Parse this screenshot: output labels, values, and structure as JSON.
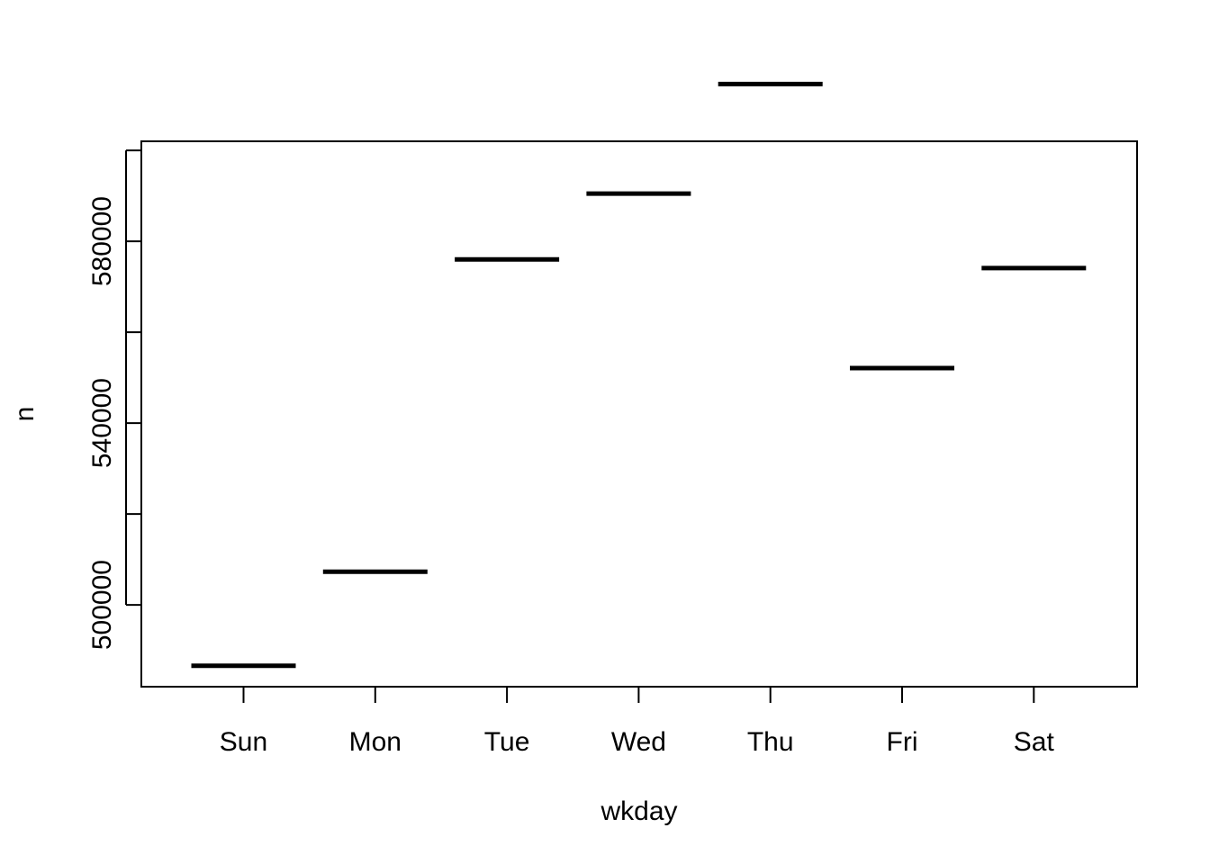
{
  "chart_data": {
    "type": "line",
    "title": "",
    "xlabel": "wkday",
    "ylabel": "n",
    "categories": [
      "Sun",
      "Mon",
      "Tue",
      "Wed",
      "Thu",
      "Fri",
      "Sat"
    ],
    "values": [
      486600,
      507300,
      576000,
      590500,
      614600,
      552100,
      574100
    ],
    "ylim": [
      482000,
      602000
    ],
    "yticks": [
      500000,
      520000,
      540000,
      560000,
      580000,
      600000
    ],
    "ytick_labels": [
      "500000",
      "",
      "540000",
      "",
      "580000",
      ""
    ],
    "grid": false,
    "legend": "none",
    "mark_color": "#000000"
  }
}
